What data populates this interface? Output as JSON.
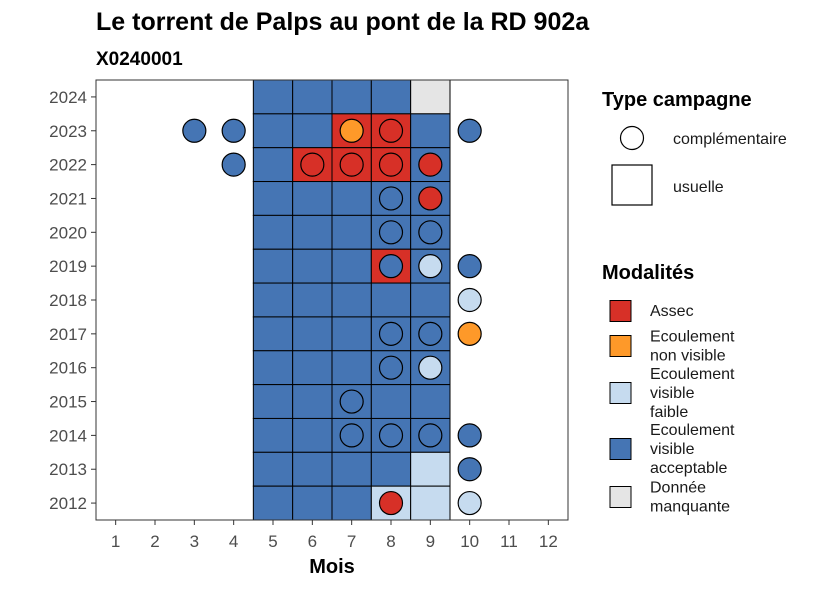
{
  "chart_data": {
    "type": "heatmap",
    "title": "Le torrent de Palps au pont de la RD 902a",
    "subtitle": "X0240001",
    "xlabel": "Mois",
    "ylabel": "",
    "x_ticks": [
      "1",
      "2",
      "3",
      "4",
      "5",
      "6",
      "7",
      "8",
      "9",
      "10",
      "11",
      "12"
    ],
    "y_ticks": [
      "2012",
      "2013",
      "2014",
      "2015",
      "2016",
      "2017",
      "2018",
      "2019",
      "2020",
      "2021",
      "2022",
      "2023",
      "2024"
    ],
    "xlim": [
      0.5,
      12.5
    ],
    "ylim": [
      2011.5,
      2024.5
    ],
    "colors": {
      "Assec": "#d73027",
      "Ecoulement non visible": "#fe9929",
      "Ecoulement visible faible": "#c6dbef",
      "Ecoulement visible acceptable": "#4575b4",
      "Donnée manquante": "#e5e5e5"
    },
    "legend_type": {
      "title": "Type campagne",
      "entries": [
        {
          "key": "complementaire",
          "label": "complémentaire"
        },
        {
          "key": "usuelle",
          "label": "usuelle"
        }
      ]
    },
    "legend_modalites": {
      "title": "Modalités",
      "entries": [
        {
          "key": "Assec",
          "lines": [
            "Assec"
          ]
        },
        {
          "key": "Ecoulement non visible",
          "lines": [
            "Ecoulement",
            "non visible"
          ]
        },
        {
          "key": "Ecoulement visible faible",
          "lines": [
            "Ecoulement",
            "visible",
            "faible"
          ]
        },
        {
          "key": "Ecoulement visible acceptable",
          "lines": [
            "Ecoulement",
            "visible",
            "acceptable"
          ]
        },
        {
          "key": "Donnée manquante",
          "lines": [
            "Donnée",
            "manquante"
          ]
        }
      ]
    },
    "usuelle": [
      {
        "year": 2024,
        "month": 5,
        "value": "Ecoulement visible acceptable"
      },
      {
        "year": 2024,
        "month": 6,
        "value": "Ecoulement visible acceptable"
      },
      {
        "year": 2024,
        "month": 7,
        "value": "Ecoulement visible acceptable"
      },
      {
        "year": 2024,
        "month": 8,
        "value": "Ecoulement visible acceptable"
      },
      {
        "year": 2024,
        "month": 9,
        "value": "Donnée manquante"
      },
      {
        "year": 2023,
        "month": 5,
        "value": "Ecoulement visible acceptable"
      },
      {
        "year": 2023,
        "month": 6,
        "value": "Ecoulement visible acceptable"
      },
      {
        "year": 2023,
        "month": 7,
        "value": "Assec"
      },
      {
        "year": 2023,
        "month": 8,
        "value": "Assec"
      },
      {
        "year": 2023,
        "month": 9,
        "value": "Ecoulement visible acceptable"
      },
      {
        "year": 2022,
        "month": 5,
        "value": "Ecoulement visible acceptable"
      },
      {
        "year": 2022,
        "month": 6,
        "value": "Assec"
      },
      {
        "year": 2022,
        "month": 7,
        "value": "Assec"
      },
      {
        "year": 2022,
        "month": 8,
        "value": "Assec"
      },
      {
        "year": 2022,
        "month": 9,
        "value": "Ecoulement visible acceptable"
      },
      {
        "year": 2021,
        "month": 5,
        "value": "Ecoulement visible acceptable"
      },
      {
        "year": 2021,
        "month": 6,
        "value": "Ecoulement visible acceptable"
      },
      {
        "year": 2021,
        "month": 7,
        "value": "Ecoulement visible acceptable"
      },
      {
        "year": 2021,
        "month": 8,
        "value": "Ecoulement visible acceptable"
      },
      {
        "year": 2021,
        "month": 9,
        "value": "Ecoulement visible acceptable"
      },
      {
        "year": 2020,
        "month": 5,
        "value": "Ecoulement visible acceptable"
      },
      {
        "year": 2020,
        "month": 6,
        "value": "Ecoulement visible acceptable"
      },
      {
        "year": 2020,
        "month": 7,
        "value": "Ecoulement visible acceptable"
      },
      {
        "year": 2020,
        "month": 8,
        "value": "Ecoulement visible acceptable"
      },
      {
        "year": 2020,
        "month": 9,
        "value": "Ecoulement visible acceptable"
      },
      {
        "year": 2019,
        "month": 5,
        "value": "Ecoulement visible acceptable"
      },
      {
        "year": 2019,
        "month": 6,
        "value": "Ecoulement visible acceptable"
      },
      {
        "year": 2019,
        "month": 7,
        "value": "Ecoulement visible acceptable"
      },
      {
        "year": 2019,
        "month": 8,
        "value": "Assec"
      },
      {
        "year": 2019,
        "month": 9,
        "value": "Ecoulement visible acceptable"
      },
      {
        "year": 2018,
        "month": 5,
        "value": "Ecoulement visible acceptable"
      },
      {
        "year": 2018,
        "month": 6,
        "value": "Ecoulement visible acceptable"
      },
      {
        "year": 2018,
        "month": 7,
        "value": "Ecoulement visible acceptable"
      },
      {
        "year": 2018,
        "month": 8,
        "value": "Ecoulement visible acceptable"
      },
      {
        "year": 2018,
        "month": 9,
        "value": "Ecoulement visible acceptable"
      },
      {
        "year": 2017,
        "month": 5,
        "value": "Ecoulement visible acceptable"
      },
      {
        "year": 2017,
        "month": 6,
        "value": "Ecoulement visible acceptable"
      },
      {
        "year": 2017,
        "month": 7,
        "value": "Ecoulement visible acceptable"
      },
      {
        "year": 2017,
        "month": 8,
        "value": "Ecoulement visible acceptable"
      },
      {
        "year": 2017,
        "month": 9,
        "value": "Ecoulement visible acceptable"
      },
      {
        "year": 2016,
        "month": 5,
        "value": "Ecoulement visible acceptable"
      },
      {
        "year": 2016,
        "month": 6,
        "value": "Ecoulement visible acceptable"
      },
      {
        "year": 2016,
        "month": 7,
        "value": "Ecoulement visible acceptable"
      },
      {
        "year": 2016,
        "month": 8,
        "value": "Ecoulement visible acceptable"
      },
      {
        "year": 2016,
        "month": 9,
        "value": "Ecoulement visible acceptable"
      },
      {
        "year": 2015,
        "month": 5,
        "value": "Ecoulement visible acceptable"
      },
      {
        "year": 2015,
        "month": 6,
        "value": "Ecoulement visible acceptable"
      },
      {
        "year": 2015,
        "month": 7,
        "value": "Ecoulement visible acceptable"
      },
      {
        "year": 2015,
        "month": 8,
        "value": "Ecoulement visible acceptable"
      },
      {
        "year": 2015,
        "month": 9,
        "value": "Ecoulement visible acceptable"
      },
      {
        "year": 2014,
        "month": 5,
        "value": "Ecoulement visible acceptable"
      },
      {
        "year": 2014,
        "month": 6,
        "value": "Ecoulement visible acceptable"
      },
      {
        "year": 2014,
        "month": 7,
        "value": "Ecoulement visible acceptable"
      },
      {
        "year": 2014,
        "month": 8,
        "value": "Ecoulement visible acceptable"
      },
      {
        "year": 2014,
        "month": 9,
        "value": "Ecoulement visible acceptable"
      },
      {
        "year": 2013,
        "month": 5,
        "value": "Ecoulement visible acceptable"
      },
      {
        "year": 2013,
        "month": 6,
        "value": "Ecoulement visible acceptable"
      },
      {
        "year": 2013,
        "month": 7,
        "value": "Ecoulement visible acceptable"
      },
      {
        "year": 2013,
        "month": 8,
        "value": "Ecoulement visible acceptable"
      },
      {
        "year": 2013,
        "month": 9,
        "value": "Ecoulement visible faible"
      },
      {
        "year": 2012,
        "month": 5,
        "value": "Ecoulement visible acceptable"
      },
      {
        "year": 2012,
        "month": 6,
        "value": "Ecoulement visible acceptable"
      },
      {
        "year": 2012,
        "month": 7,
        "value": "Ecoulement visible acceptable"
      },
      {
        "year": 2012,
        "month": 8,
        "value": "Ecoulement visible faible"
      },
      {
        "year": 2012,
        "month": 9,
        "value": "Ecoulement visible faible"
      }
    ],
    "complementaire": [
      {
        "year": 2023,
        "month": 3,
        "value": "Ecoulement visible acceptable"
      },
      {
        "year": 2023,
        "month": 4,
        "value": "Ecoulement visible acceptable"
      },
      {
        "year": 2023,
        "month": 7,
        "value": "Ecoulement non visible"
      },
      {
        "year": 2023,
        "month": 8,
        "value": "Assec"
      },
      {
        "year": 2023,
        "month": 10,
        "value": "Ecoulement visible acceptable"
      },
      {
        "year": 2022,
        "month": 4,
        "value": "Ecoulement visible acceptable"
      },
      {
        "year": 2022,
        "month": 6,
        "value": "Assec"
      },
      {
        "year": 2022,
        "month": 7,
        "value": "Assec"
      },
      {
        "year": 2022,
        "month": 8,
        "value": "Assec"
      },
      {
        "year": 2022,
        "month": 9,
        "value": "Assec"
      },
      {
        "year": 2021,
        "month": 8,
        "value": "Ecoulement visible acceptable"
      },
      {
        "year": 2021,
        "month": 9,
        "value": "Assec"
      },
      {
        "year": 2020,
        "month": 8,
        "value": "Ecoulement visible acceptable"
      },
      {
        "year": 2020,
        "month": 9,
        "value": "Ecoulement visible acceptable"
      },
      {
        "year": 2019,
        "month": 8,
        "value": "Ecoulement visible acceptable"
      },
      {
        "year": 2019,
        "month": 9,
        "value": "Ecoulement visible faible"
      },
      {
        "year": 2019,
        "month": 10,
        "value": "Ecoulement visible acceptable"
      },
      {
        "year": 2018,
        "month": 10,
        "value": "Ecoulement visible faible"
      },
      {
        "year": 2017,
        "month": 8,
        "value": "Ecoulement visible acceptable"
      },
      {
        "year": 2017,
        "month": 9,
        "value": "Ecoulement visible acceptable"
      },
      {
        "year": 2017,
        "month": 10,
        "value": "Ecoulement non visible"
      },
      {
        "year": 2016,
        "month": 8,
        "value": "Ecoulement visible acceptable"
      },
      {
        "year": 2016,
        "month": 9,
        "value": "Ecoulement visible faible"
      },
      {
        "year": 2015,
        "month": 7,
        "value": "Ecoulement visible acceptable"
      },
      {
        "year": 2014,
        "month": 7,
        "value": "Ecoulement visible acceptable"
      },
      {
        "year": 2014,
        "month": 8,
        "value": "Ecoulement visible acceptable"
      },
      {
        "year": 2014,
        "month": 9,
        "value": "Ecoulement visible acceptable"
      },
      {
        "year": 2014,
        "month": 10,
        "value": "Ecoulement visible acceptable"
      },
      {
        "year": 2013,
        "month": 10,
        "value": "Ecoulement visible acceptable"
      },
      {
        "year": 2012,
        "month": 8,
        "value": "Assec"
      },
      {
        "year": 2012,
        "month": 10,
        "value": "Ecoulement visible faible"
      }
    ]
  }
}
